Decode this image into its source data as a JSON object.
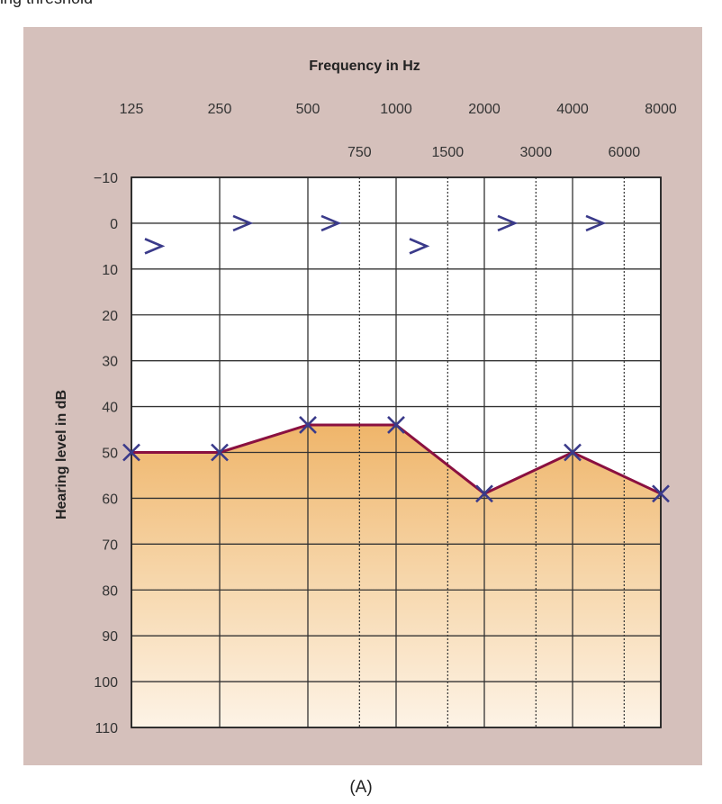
{
  "top_clipped_text": "ing threshold",
  "caption": "(A)",
  "chart_data": {
    "type": "line",
    "title": "Frequency in Hz",
    "xlabel": "Frequency in Hz",
    "ylabel": "Hearing level in dB",
    "y_axis_inverted": true,
    "ylim": [
      -10,
      110
    ],
    "y_ticks": [
      -10,
      0,
      10,
      20,
      30,
      40,
      50,
      60,
      70,
      80,
      90,
      100,
      110
    ],
    "x_scale": "log",
    "x_ticks_major": [
      "125",
      "250",
      "500",
      "1000",
      "2000",
      "4000",
      "8000"
    ],
    "x_ticks_minor": [
      "750",
      "1500",
      "3000",
      "6000"
    ],
    "grid": true,
    "series": [
      {
        "marker": "X",
        "color": "#3a3a8a",
        "line_color": "#8a1040",
        "fill_below": true,
        "x": [
          125,
          250,
          500,
          1000,
          2000,
          4000,
          8000
        ],
        "y": [
          50,
          50,
          44,
          44,
          59,
          50,
          59
        ]
      },
      {
        "marker": ">",
        "color": "#3a3a8a",
        "x": [
          125,
          250,
          500,
          1000,
          2000,
          4000
        ],
        "y": [
          5,
          0,
          0,
          5,
          0,
          0
        ]
      }
    ]
  }
}
